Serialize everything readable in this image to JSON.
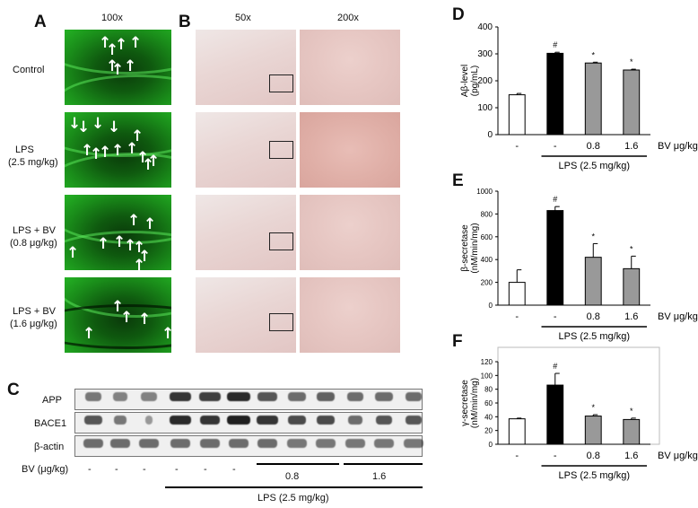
{
  "panel_letters": {
    "a": "A",
    "b": "B",
    "c": "C",
    "d": "D",
    "e": "E",
    "f": "F"
  },
  "panelA": {
    "magnification": "100x",
    "row_labels": [
      {
        "line1": "Control",
        "line2": ""
      },
      {
        "line1": "LPS",
        "line2": "(2.5 mg/kg)"
      },
      {
        "line1": "LPS + BV",
        "line2": "(0.8 μg/kg)"
      },
      {
        "line1": "LPS + BV",
        "line2": "(1.6 μg/kg)"
      }
    ],
    "arrow_glyph": "↑",
    "down_arrow_glyph": "↓"
  },
  "panelB": {
    "magnification_left": "50x",
    "magnification_right": "200x"
  },
  "panelC": {
    "row_labels": [
      "APP",
      "BACE1",
      "β-actin"
    ],
    "bv_label": "BV (μg/kg)",
    "bv_values": [
      "-",
      "-",
      "-",
      "-",
      "-",
      "-",
      "0.8",
      "1.6"
    ],
    "lps_label": "LPS (2.5 mg/kg)"
  },
  "colors": {
    "open": "#ffffff",
    "lps": "#000000",
    "bv": "#999999",
    "fluor": "#1a8c1a"
  },
  "chart_data": [
    {
      "type": "bar",
      "panel": "D",
      "ylabel": "Aβ-level (pg/mL)",
      "ylim": [
        0,
        400
      ],
      "yticks": [
        0,
        100,
        200,
        300,
        400
      ],
      "x_labels": [
        "-",
        "-",
        "0.8",
        "1.6"
      ],
      "x_suffix": "BV μg/kg",
      "group_label": "LPS (2.5 mg/kg)",
      "values": [
        148,
        302,
        266,
        240
      ],
      "errors": [
        5,
        4,
        3,
        3
      ],
      "marks": [
        "",
        "#",
        "*",
        "*"
      ]
    },
    {
      "type": "bar",
      "panel": "E",
      "ylabel": "β-secretase (nM/min/mg)",
      "ylim": [
        0,
        1000
      ],
      "yticks": [
        0,
        200,
        400,
        600,
        800,
        1000
      ],
      "x_labels": [
        "-",
        "-",
        "0.8",
        "1.6"
      ],
      "x_suffix": "BV μg/kg",
      "group_label": "LPS (2.5 mg/kg)",
      "values": [
        200,
        830,
        420,
        320
      ],
      "errors": [
        110,
        35,
        120,
        110
      ],
      "marks": [
        "",
        "#",
        "*",
        "*"
      ]
    },
    {
      "type": "bar",
      "panel": "F",
      "ylabel": "γ-secretase (nM/min/mg)",
      "ylim": [
        0,
        120
      ],
      "yticks": [
        0,
        20,
        40,
        60,
        80,
        100,
        120
      ],
      "x_labels": [
        "-",
        "-",
        "0.8",
        "1.6"
      ],
      "x_suffix": "BV μg/kg",
      "group_label": "LPS (2.5 mg/kg)",
      "values": [
        37,
        86,
        41,
        36
      ],
      "errors": [
        1,
        17,
        2,
        2
      ],
      "marks": [
        "",
        "#",
        "*",
        "*"
      ]
    }
  ]
}
